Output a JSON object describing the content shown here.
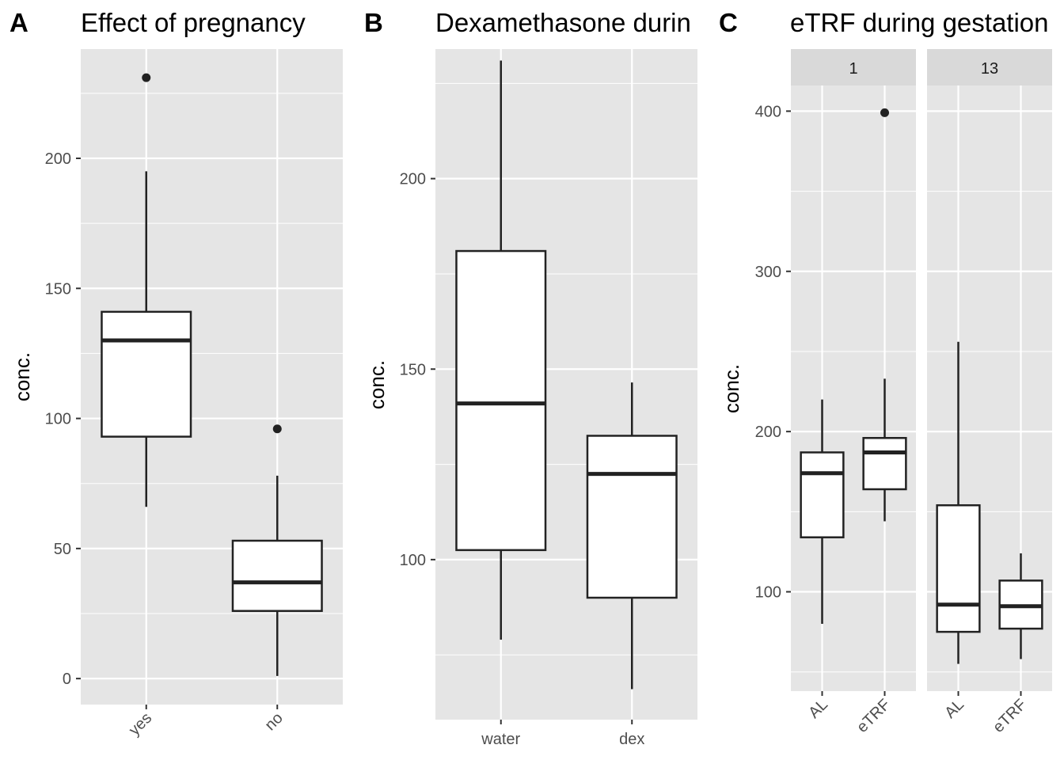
{
  "chart_data": [
    {
      "type": "boxplot",
      "panel_label": "A",
      "title": "Effect of pregnancy",
      "ylabel": "conc.",
      "xlabel": "",
      "ylim": [
        -10,
        242
      ],
      "yticks": [
        0,
        50,
        100,
        150,
        200
      ],
      "ytick_labels": [
        "0",
        "50",
        "100",
        "150",
        "200"
      ],
      "minor_yticks": [
        25,
        75,
        125,
        175,
        225
      ],
      "x_label_rotation": 45,
      "grid": true,
      "categories": [
        "yes",
        "no"
      ],
      "boxes": [
        {
          "category": "yes",
          "whisker_low": 66,
          "q1": 93,
          "median": 130,
          "q3": 141,
          "whisker_high": 195,
          "outliers": [
            231
          ]
        },
        {
          "category": "no",
          "whisker_low": 1,
          "q1": 26,
          "median": 37,
          "q3": 53,
          "whisker_high": 78,
          "outliers": [
            96
          ]
        }
      ]
    },
    {
      "type": "boxplot",
      "panel_label": "B",
      "title": "Dexamethasone durin",
      "ylabel": "conc.",
      "xlabel": "",
      "ylim": [
        58,
        234
      ],
      "yticks": [
        100,
        150,
        200
      ],
      "ytick_labels": [
        "100",
        "150",
        "200"
      ],
      "minor_yticks": [
        75,
        125,
        175,
        225
      ],
      "x_label_rotation": 0,
      "grid": true,
      "categories": [
        "water",
        "dex"
      ],
      "boxes": [
        {
          "category": "water",
          "whisker_low": 79,
          "q1": 102.5,
          "median": 141,
          "q3": 181,
          "whisker_high": 231,
          "outliers": []
        },
        {
          "category": "dex",
          "whisker_low": 66,
          "q1": 90,
          "median": 122.5,
          "q3": 132.5,
          "whisker_high": 146.5,
          "outliers": []
        }
      ]
    },
    {
      "type": "boxplot",
      "panel_label": "C",
      "title": "eTRF during gestation",
      "ylabel": "conc.",
      "xlabel": "",
      "ylim": [
        38,
        416
      ],
      "yticks": [
        100,
        200,
        300,
        400
      ],
      "ytick_labels": [
        "100",
        "200",
        "300",
        "400"
      ],
      "minor_yticks": [
        50,
        150,
        250,
        350
      ],
      "x_label_rotation": 45,
      "grid": true,
      "facets": [
        {
          "strip": "1",
          "categories": [
            "AL",
            "eTRF"
          ],
          "boxes": [
            {
              "category": "AL",
              "whisker_low": 80,
              "q1": 134,
              "median": 174,
              "q3": 187,
              "whisker_high": 220,
              "outliers": []
            },
            {
              "category": "eTRF",
              "whisker_low": 144,
              "q1": 164,
              "median": 187,
              "q3": 196,
              "whisker_high": 233,
              "outliers": [
                399
              ]
            }
          ]
        },
        {
          "strip": "13",
          "categories": [
            "AL",
            "eTRF"
          ],
          "boxes": [
            {
              "category": "AL",
              "whisker_low": 55,
              "q1": 75,
              "median": 92,
              "q3": 154,
              "whisker_high": 256,
              "outliers": []
            },
            {
              "category": "eTRF",
              "whisker_low": 58,
              "q1": 77,
              "median": 91,
              "q3": 107,
              "whisker_high": 124,
              "outliers": []
            }
          ]
        }
      ]
    }
  ],
  "colors": {
    "panel_background": "#e5e5e5",
    "grid": "#ffffff",
    "strip_background": "#d9d9d9",
    "box_fill": "#ffffff",
    "box_stroke": "#222222",
    "tick_text": "#4d4d4d"
  }
}
